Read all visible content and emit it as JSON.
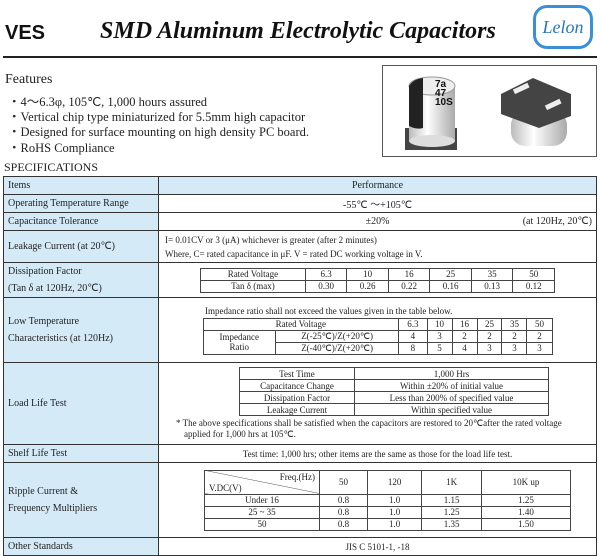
{
  "header": {
    "series": "VES",
    "title": "SMD Aluminum Electrolytic Capacitors",
    "logo": "Lelon"
  },
  "features": {
    "heading": "Features",
    "items": [
      "4～6.3φ, 105℃, 1,000 hours assured",
      "Vertical chip type miniaturized for 5.5mm high capacitor",
      "Designed for surface mounting on high density PC board.",
      "RoHS Compliance"
    ]
  },
  "product_image": {
    "marking": [
      "7a",
      "47",
      "10S"
    ]
  },
  "specifications": {
    "heading": "SPECIFICATIONS",
    "col_items": "Items",
    "col_performance": "Performance",
    "op_temp": {
      "label": "Operating Temperature Range",
      "value": "-55℃ ～+105℃"
    },
    "cap_tol": {
      "label": "Capacitance Tolerance",
      "value": "±20%",
      "note": "(at 120Hz, 20℃)"
    },
    "leakage": {
      "label": "Leakage Current (at 20℃)",
      "line1": "I= 0.01CV or 3 (μA) whichever is greater (after 2 minutes)",
      "line2": "Where, C= rated capacitance in  μF.    V = rated DC working voltage in V."
    },
    "dissipation": {
      "label1": "Dissipation Factor",
      "label2": "(Tan δ at 120Hz, 20℃)",
      "row_v": "Rated Voltage",
      "row_t": "Tan δ (max)",
      "voltages": [
        "6.3",
        "10",
        "16",
        "25",
        "35",
        "50"
      ],
      "tan": [
        "0.30",
        "0.26",
        "0.22",
        "0.16",
        "0.13",
        "0.12"
      ]
    },
    "low_temp": {
      "label1": "Low Temperature",
      "label2": "Characteristics (at 120Hz)",
      "intro": "Impedance ratio shall not exceed the values given in the table below.",
      "row_v": "Rated Voltage",
      "group1": "Impedance",
      "group2": "Ratio",
      "r1": "Z(-25℃)/Z(+20℃)",
      "r2": "Z(-40℃)/Z(+20℃)",
      "voltages": [
        "6.3",
        "10",
        "16",
        "25",
        "35",
        "50"
      ],
      "v1": [
        "4",
        "3",
        "2",
        "2",
        "2",
        "2"
      ],
      "v2": [
        "8",
        "5",
        "4",
        "3",
        "3",
        "3"
      ]
    },
    "load_life": {
      "label": "Load Life Test",
      "rows": [
        [
          "Test Time",
          "1,000 Hrs"
        ],
        [
          "Capacitance Change",
          "Within ±20% of initial value"
        ],
        [
          "Dissipation Factor",
          "Less than 200% of specified value"
        ],
        [
          "Leakage Current",
          "Within specified value"
        ]
      ],
      "note1": "* The above specifications shall be satisfied when the capacitors are restored to 20℃after the rated voltage",
      "note2": "applied for 1,000 hrs at 105℃."
    },
    "shelf": {
      "label": "Shelf Life Test",
      "value": "Test time: 1,000 hrs; other items are the same as those for the load life test."
    },
    "ripple": {
      "label1": "Ripple Current &",
      "label2": "Frequency Multipliers",
      "freq": "Freq.(Hz)",
      "vdc": "V.DC(V)",
      "cols": [
        "50",
        "120",
        "1K",
        "10K up"
      ],
      "rows": [
        {
          "v": "Under 16",
          "m": [
            "0.8",
            "1.0",
            "1.15",
            "1.25"
          ]
        },
        {
          "v": "25 ~ 35",
          "m": [
            "0.8",
            "1.0",
            "1.25",
            "1.40"
          ]
        },
        {
          "v": "50",
          "m": [
            "0.8",
            "1.0",
            "1.35",
            "1.50"
          ]
        }
      ]
    },
    "other": {
      "label": "Other Standards",
      "value": "JIS C 5101-1, -18"
    }
  }
}
